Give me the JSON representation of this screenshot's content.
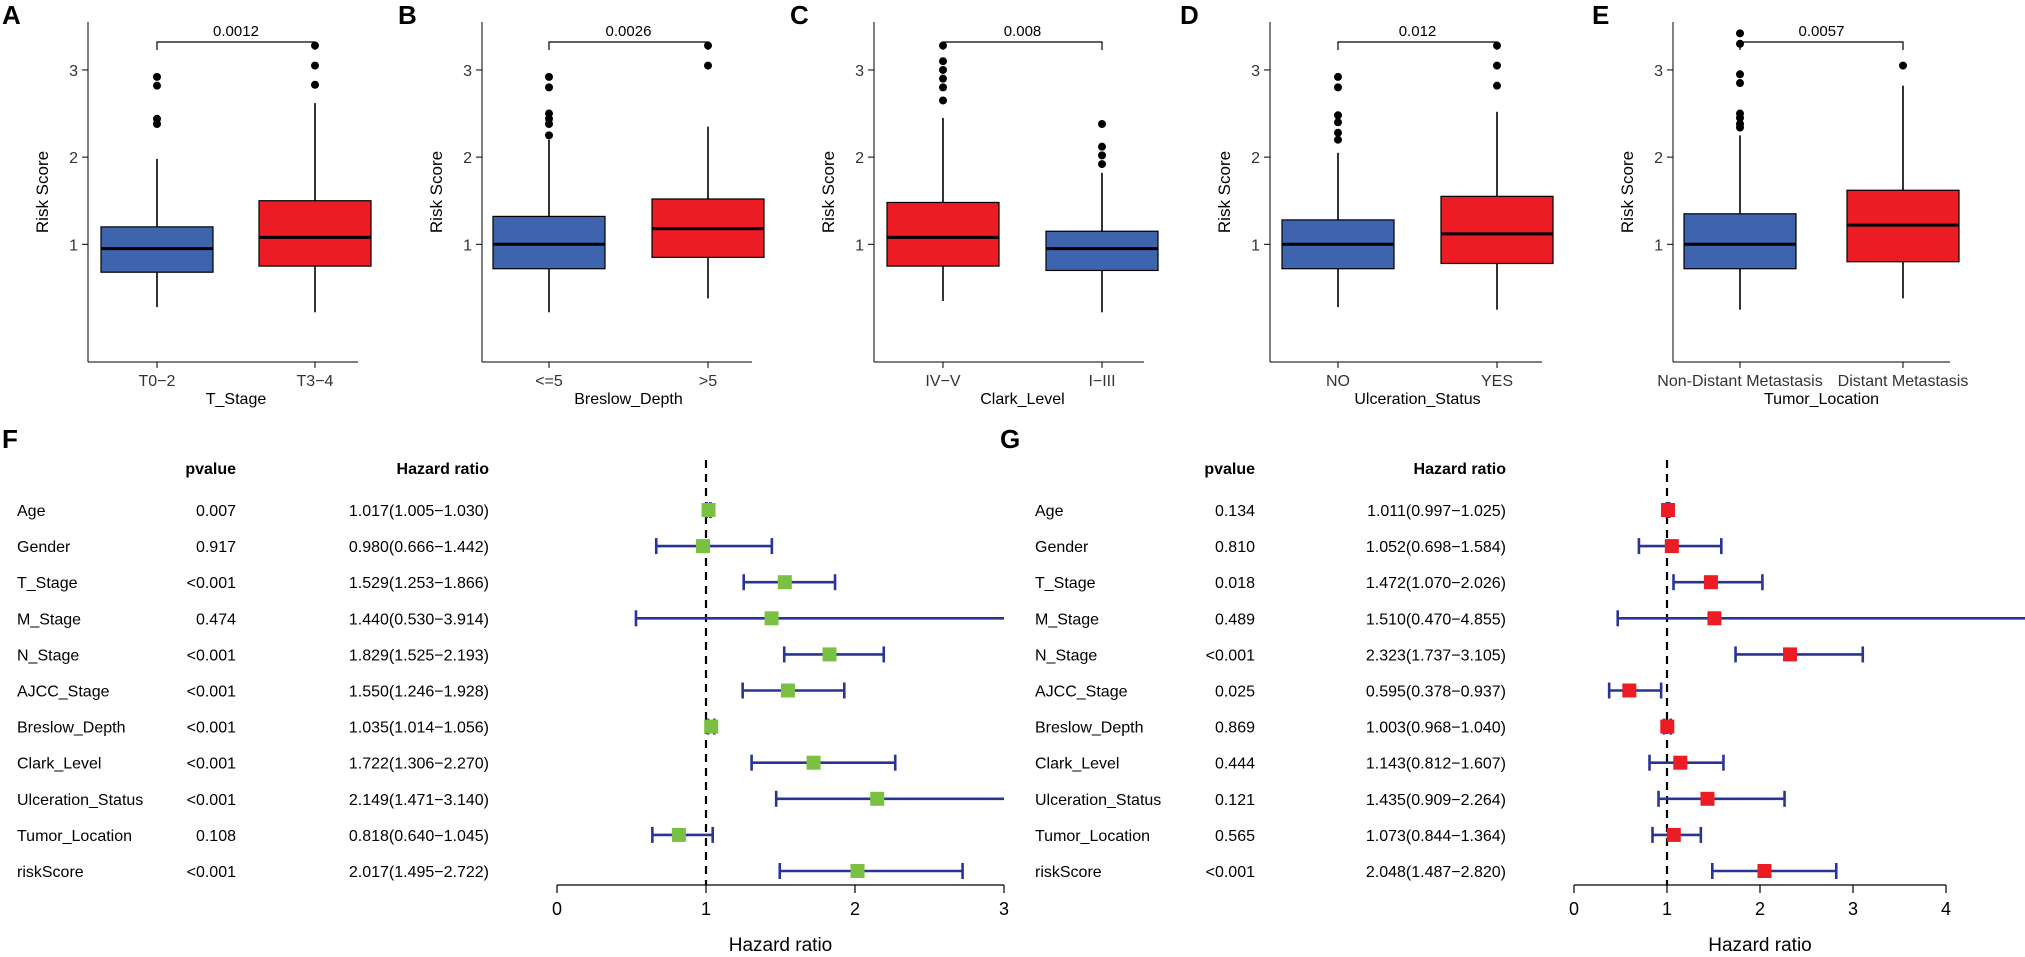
{
  "chart_data": [
    {
      "panel": "A",
      "type": "boxplot",
      "ylabel": "Risk Score",
      "xlabel": "T_Stage",
      "yticks": [
        "1",
        "2",
        "3"
      ],
      "pvalue": "0.0012",
      "groups": [
        {
          "label": "T0−2",
          "color": "#3d64ad",
          "min": 0.28,
          "q1": 0.68,
          "median": 0.95,
          "q3": 1.2,
          "max": 1.98,
          "outliers": [
            2.38,
            2.44,
            2.82,
            2.92
          ]
        },
        {
          "label": "T3−4",
          "color": "#ec1c24",
          "min": 0.22,
          "q1": 0.75,
          "median": 1.08,
          "q3": 1.5,
          "max": 2.62,
          "outliers": [
            2.83,
            3.05,
            3.28
          ]
        }
      ]
    },
    {
      "panel": "B",
      "type": "boxplot",
      "ylabel": "Risk Score",
      "xlabel": "Breslow_Depth",
      "yticks": [
        "1",
        "2",
        "3"
      ],
      "pvalue": "0.0026",
      "groups": [
        {
          "label": "<=5",
          "color": "#3d64ad",
          "min": 0.22,
          "q1": 0.72,
          "median": 1.0,
          "q3": 1.32,
          "max": 2.2,
          "outliers": [
            2.25,
            2.38,
            2.44,
            2.5,
            2.8,
            2.92
          ]
        },
        {
          "label": ">5",
          "color": "#ec1c24",
          "min": 0.38,
          "q1": 0.85,
          "median": 1.18,
          "q3": 1.52,
          "max": 2.35,
          "outliers": [
            3.05,
            3.28
          ]
        }
      ]
    },
    {
      "panel": "C",
      "type": "boxplot",
      "ylabel": "Risk Score",
      "xlabel": "Clark_Level",
      "yticks": [
        "1",
        "2",
        "3"
      ],
      "pvalue": "0.008",
      "groups": [
        {
          "label": "IV−V",
          "color": "#ec1c24",
          "min": 0.35,
          "q1": 0.75,
          "median": 1.08,
          "q3": 1.48,
          "max": 2.45,
          "outliers": [
            2.65,
            2.8,
            2.9,
            3.0,
            3.1,
            3.28
          ]
        },
        {
          "label": "I−III",
          "color": "#3d64ad",
          "min": 0.22,
          "q1": 0.7,
          "median": 0.95,
          "q3": 1.15,
          "max": 1.82,
          "outliers": [
            1.92,
            2.02,
            2.12,
            2.38
          ]
        }
      ]
    },
    {
      "panel": "D",
      "type": "boxplot",
      "ylabel": "Risk Score",
      "xlabel": "Ulceration_Status",
      "yticks": [
        "1",
        "2",
        "3"
      ],
      "pvalue": "0.012",
      "groups": [
        {
          "label": "NO",
          "color": "#3d64ad",
          "min": 0.28,
          "q1": 0.72,
          "median": 1.0,
          "q3": 1.28,
          "max": 2.05,
          "outliers": [
            2.2,
            2.28,
            2.4,
            2.48,
            2.8,
            2.92
          ]
        },
        {
          "label": "YES",
          "color": "#ec1c24",
          "min": 0.25,
          "q1": 0.78,
          "median": 1.12,
          "q3": 1.55,
          "max": 2.52,
          "outliers": [
            2.82,
            3.05,
            3.28
          ]
        }
      ]
    },
    {
      "panel": "E",
      "type": "boxplot",
      "ylabel": "Risk Score",
      "xlabel": "Tumor_Location",
      "yticks": [
        "1",
        "2",
        "3"
      ],
      "pvalue": "0.0057",
      "groups": [
        {
          "label": "Non-Distant Metastasis",
          "color": "#3d64ad",
          "min": 0.25,
          "q1": 0.72,
          "median": 1.0,
          "q3": 1.35,
          "max": 2.25,
          "outliers": [
            2.34,
            2.38,
            2.45,
            2.5,
            2.85,
            2.95,
            3.3,
            3.42
          ]
        },
        {
          "label": "Distant Metastasis",
          "color": "#ec1c24",
          "min": 0.38,
          "q1": 0.8,
          "median": 1.22,
          "q3": 1.62,
          "max": 2.82,
          "outliers": [
            3.05
          ]
        }
      ]
    },
    {
      "panel": "F",
      "type": "forest",
      "col_pvalue": "pvalue",
      "col_hr": "Hazard ratio",
      "xlabel": "Hazard ratio",
      "xticks": [
        "0",
        "1",
        "2",
        "3"
      ],
      "xlim": [
        0,
        3
      ],
      "marker_color": "#7ac143",
      "ci_color": "#283593",
      "rows": [
        {
          "name": "Age",
          "p": "0.007",
          "hr_text": "1.017(1.005−1.030)",
          "hr": 1.017,
          "lo": 1.005,
          "hi": 1.03
        },
        {
          "name": "Gender",
          "p": "0.917",
          "hr_text": "0.980(0.666−1.442)",
          "hr": 0.98,
          "lo": 0.666,
          "hi": 1.442
        },
        {
          "name": "T_Stage",
          "p": "<0.001",
          "hr_text": "1.529(1.253−1.866)",
          "hr": 1.529,
          "lo": 1.253,
          "hi": 1.866
        },
        {
          "name": "M_Stage",
          "p": "0.474",
          "hr_text": "1.440(0.530−3.914)",
          "hr": 1.44,
          "lo": 0.53,
          "hi": 3.914
        },
        {
          "name": "N_Stage",
          "p": "<0.001",
          "hr_text": "1.829(1.525−2.193)",
          "hr": 1.829,
          "lo": 1.525,
          "hi": 2.193
        },
        {
          "name": "AJCC_Stage",
          "p": "<0.001",
          "hr_text": "1.550(1.246−1.928)",
          "hr": 1.55,
          "lo": 1.246,
          "hi": 1.928
        },
        {
          "name": "Breslow_Depth",
          "p": "<0.001",
          "hr_text": "1.035(1.014−1.056)",
          "hr": 1.035,
          "lo": 1.014,
          "hi": 1.056
        },
        {
          "name": "Clark_Level",
          "p": "<0.001",
          "hr_text": "1.722(1.306−2.270)",
          "hr": 1.722,
          "lo": 1.306,
          "hi": 2.27
        },
        {
          "name": "Ulceration_Status",
          "p": "<0.001",
          "hr_text": "2.149(1.471−3.140)",
          "hr": 2.149,
          "lo": 1.471,
          "hi": 3.14
        },
        {
          "name": "Tumor_Location",
          "p": "0.108",
          "hr_text": "0.818(0.640−1.045)",
          "hr": 0.818,
          "lo": 0.64,
          "hi": 1.045
        },
        {
          "name": "riskScore",
          "p": "<0.001",
          "hr_text": "2.017(1.495−2.722)",
          "hr": 2.017,
          "lo": 1.495,
          "hi": 2.722
        }
      ]
    },
    {
      "panel": "G",
      "type": "forest",
      "col_pvalue": "pvalue",
      "col_hr": "Hazard ratio",
      "xlabel": "Hazard ratio",
      "xticks": [
        "0",
        "1",
        "2",
        "3",
        "4"
      ],
      "xlim": [
        0,
        4
      ],
      "marker_color": "#ec1c24",
      "ci_color": "#283593",
      "rows": [
        {
          "name": "Age",
          "p": "0.134",
          "hr_text": "1.011(0.997−1.025)",
          "hr": 1.011,
          "lo": 0.997,
          "hi": 1.025
        },
        {
          "name": "Gender",
          "p": "0.810",
          "hr_text": "1.052(0.698−1.584)",
          "hr": 1.052,
          "lo": 0.698,
          "hi": 1.584
        },
        {
          "name": "T_Stage",
          "p": "0.018",
          "hr_text": "1.472(1.070−2.026)",
          "hr": 1.472,
          "lo": 1.07,
          "hi": 2.026
        },
        {
          "name": "M_Stage",
          "p": "0.489",
          "hr_text": "1.510(0.470−4.855)",
          "hr": 1.51,
          "lo": 0.47,
          "hi": 4.855
        },
        {
          "name": "N_Stage",
          "p": "<0.001",
          "hr_text": "2.323(1.737−3.105)",
          "hr": 2.323,
          "lo": 1.737,
          "hi": 3.105
        },
        {
          "name": "AJCC_Stage",
          "p": "0.025",
          "hr_text": "0.595(0.378−0.937)",
          "hr": 0.595,
          "lo": 0.378,
          "hi": 0.937
        },
        {
          "name": "Breslow_Depth",
          "p": "0.869",
          "hr_text": "1.003(0.968−1.040)",
          "hr": 1.003,
          "lo": 0.968,
          "hi": 1.04
        },
        {
          "name": "Clark_Level",
          "p": "0.444",
          "hr_text": "1.143(0.812−1.607)",
          "hr": 1.143,
          "lo": 0.812,
          "hi": 1.607
        },
        {
          "name": "Ulceration_Status",
          "p": "0.121",
          "hr_text": "1.435(0.909−2.264)",
          "hr": 1.435,
          "lo": 0.909,
          "hi": 2.264
        },
        {
          "name": "Tumor_Location",
          "p": "0.565",
          "hr_text": "1.073(0.844−1.364)",
          "hr": 1.073,
          "lo": 0.844,
          "hi": 1.364
        },
        {
          "name": "riskScore",
          "p": "<0.001",
          "hr_text": "2.048(1.487−2.820)",
          "hr": 2.048,
          "lo": 1.487,
          "hi": 2.82
        }
      ]
    }
  ]
}
